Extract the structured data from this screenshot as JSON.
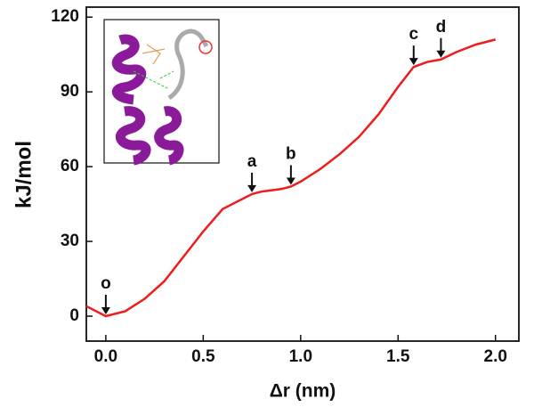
{
  "chart_data": {
    "type": "line",
    "x_label": "Δr (nm)",
    "y_label": "kJ/mol",
    "x": [
      -0.1,
      0.0,
      0.1,
      0.2,
      0.3,
      0.4,
      0.5,
      0.6,
      0.7,
      0.75,
      0.8,
      0.9,
      0.95,
      1.0,
      1.1,
      1.2,
      1.3,
      1.4,
      1.5,
      1.58,
      1.65,
      1.72,
      1.8,
      1.9,
      2.0
    ],
    "values": [
      4,
      0,
      2,
      7,
      14,
      24,
      34,
      43,
      47,
      49,
      50,
      51,
      52,
      54,
      59,
      65,
      72,
      81,
      92,
      100,
      102,
      103,
      106,
      109,
      111
    ],
    "color": "#ee1c1c",
    "xlim": [
      -0.1,
      2.12
    ],
    "ylim": [
      -10,
      124
    ],
    "xticks": [
      {
        "value": 0,
        "label": "0.0"
      },
      0.5,
      {
        "value": 1,
        "label": "1.0"
      },
      1.5,
      {
        "value": 2,
        "label": "2.0"
      }
    ],
    "yticks": [
      0,
      30,
      60,
      90,
      120
    ],
    "annotations": [
      {
        "text": "o",
        "x": 0.0,
        "y": 0
      },
      {
        "text": "a",
        "x": 0.75,
        "y": 49
      },
      {
        "text": "b",
        "x": 0.95,
        "y": 52
      },
      {
        "text": "c",
        "x": 1.58,
        "y": 100
      },
      {
        "text": "d",
        "x": 1.72,
        "y": 103
      }
    ]
  }
}
